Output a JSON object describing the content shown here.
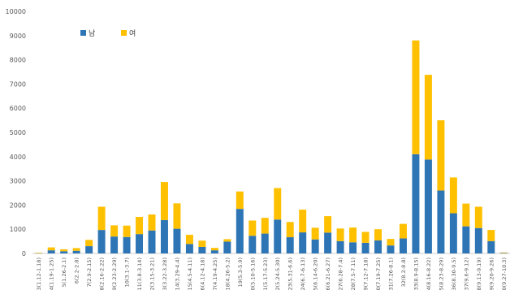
{
  "chart_data": {
    "type": "bar",
    "stacked": true,
    "title": "",
    "xlabel": "",
    "ylabel": "",
    "ylim": [
      0,
      10000
    ],
    "yticks": [
      0,
      1000,
      2000,
      3000,
      4000,
      5000,
      6000,
      7000,
      8000,
      9000,
      10000
    ],
    "grid": false,
    "legend_position": "top-left",
    "colors": {
      "male": "#2e75b6",
      "female": "#ffc000"
    },
    "categories": [
      "3(1.12-1.18)",
      "4(1.19-1.25)",
      "5(1.26-2.1)",
      "6(2.2-2.8)",
      "7(2.9-2.15)",
      "8(2.16-2.22)",
      "9(2.23-2.29)",
      "10(3.1-3.7)",
      "11(3.8-3.14)",
      "12(3.15-3.21)",
      "13(3.22-3.28)",
      "14(3.29-4.4)",
      "15(4.5-4.11)",
      "16(4.12-4.18)",
      "17(4.19-4.25)",
      "18(4.26-5.2)",
      "19(5.3-5.9)",
      "20(5.10-5.16)",
      "21(5.17-5.23)",
      "22(5.24-5.30)",
      "23(5.31-6.6)",
      "24(6.7-6.13)",
      "25(6.14-6.20)",
      "26(6.21-6.27)",
      "27(6.28-7.4)",
      "28(7.5-7.11)",
      "29(7.12-7.18)",
      "30(7.19-7.25)",
      "31(7.26-8.1)",
      "32(8.2-8.8)",
      "33(8.9-8.15)",
      "34(8.16-8.22)",
      "35(8.23-8.29)",
      "36(8.30-9.5)",
      "37(9.6-9.12)",
      "38(9.13-9.19)",
      "39(9.20-9.26)",
      "40(9.27-10.3)"
    ],
    "series": [
      {
        "name": "남",
        "values": [
          10,
          130,
          90,
          110,
          300,
          970,
          700,
          680,
          800,
          950,
          1380,
          1020,
          390,
          270,
          130,
          490,
          1840,
          730,
          820,
          1400,
          670,
          870,
          580,
          860,
          510,
          460,
          440,
          540,
          330,
          620,
          4100,
          3880,
          2600,
          1660,
          1120,
          1050,
          510,
          20
        ]
      },
      {
        "name": "여",
        "values": [
          20,
          120,
          80,
          110,
          260,
          960,
          460,
          470,
          710,
          660,
          1570,
          1050,
          380,
          260,
          100,
          100,
          720,
          630,
          650,
          1300,
          630,
          940,
          480,
          680,
          520,
          610,
          450,
          460,
          270,
          600,
          4700,
          3500,
          2900,
          1480,
          940,
          880,
          460,
          20
        ]
      }
    ]
  }
}
